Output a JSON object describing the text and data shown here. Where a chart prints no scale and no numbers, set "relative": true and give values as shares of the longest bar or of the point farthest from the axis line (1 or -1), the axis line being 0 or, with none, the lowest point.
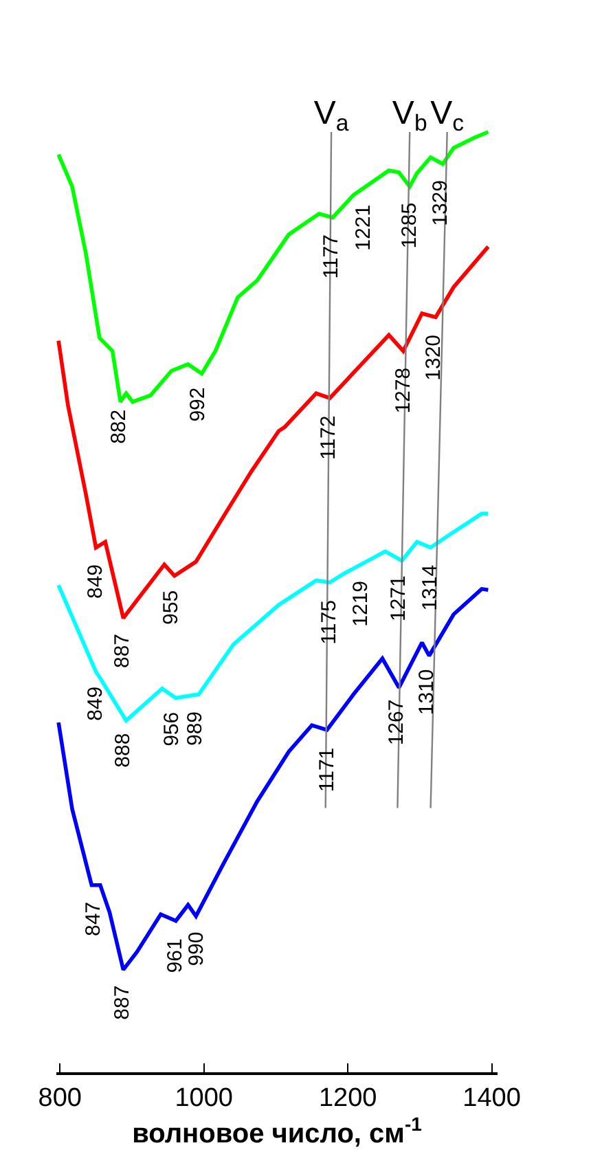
{
  "chart_data": {
    "type": "line",
    "relative": true,
    "xlabel": "волновое число, см$^{-1}$",
    "xlim": [
      795,
      1408
    ],
    "xticks": [
      800,
      1000,
      1200,
      1400
    ],
    "legend": false,
    "tick_labels": "x",
    "marker": "none",
    "line_style": "solid",
    "series": [
      {
        "color": "#00ff00",
        "x": [
          798,
          817,
          836,
          855,
          873,
          884,
          892,
          901,
          926,
          955,
          978,
          997,
          1016,
          1047,
          1074,
          1118,
          1160,
          1179,
          1208,
          1257,
          1271,
          1286,
          1296,
          1315,
          1332,
          1347,
          1376,
          1395
        ],
        "values": [
          0.976,
          0.942,
          0.871,
          0.781,
          0.767,
          0.713,
          0.722,
          0.713,
          0.72,
          0.746,
          0.753,
          0.743,
          0.767,
          0.824,
          0.842,
          0.891,
          0.913,
          0.909,
          0.933,
          0.959,
          0.957,
          0.942,
          0.956,
          0.973,
          0.966,
          0.983,
          0.994,
          1.0
        ]
      },
      {
        "color": "#ff0000",
        "x": [
          798,
          811,
          836,
          850,
          863,
          888,
          945,
          959,
          989,
          1028,
          1066,
          1104,
          1112,
          1156,
          1175,
          1219,
          1257,
          1277,
          1303,
          1322,
          1347,
          1395
        ],
        "values": [
          0.778,
          0.71,
          0.615,
          0.558,
          0.564,
          0.483,
          0.54,
          0.528,
          0.543,
          0.592,
          0.639,
          0.682,
          0.686,
          0.722,
          0.717,
          0.753,
          0.784,
          0.767,
          0.807,
          0.803,
          0.835,
          0.878
        ]
      },
      {
        "color": "#00ffff",
        "x": [
          798,
          850,
          856,
          892,
          942,
          961,
          993,
          1041,
          1104,
          1156,
          1175,
          1194,
          1252,
          1275,
          1296,
          1315,
          1342,
          1386,
          1395
        ],
        "values": [
          0.518,
          0.426,
          0.419,
          0.374,
          0.408,
          0.398,
          0.402,
          0.455,
          0.497,
          0.523,
          0.521,
          0.53,
          0.554,
          0.544,
          0.564,
          0.558,
          0.572,
          0.594,
          0.594
        ]
      },
      {
        "color": "#0000ff",
        "x": [
          798,
          817,
          844,
          856,
          869,
          888,
          907,
          940,
          961,
          978,
          989,
          1028,
          1074,
          1118,
          1150,
          1171,
          1208,
          1248,
          1271,
          1303,
          1313,
          1347,
          1386,
          1395
        ],
        "values": [
          0.372,
          0.28,
          0.199,
          0.199,
          0.17,
          0.109,
          0.128,
          0.168,
          0.161,
          0.178,
          0.166,
          0.223,
          0.288,
          0.341,
          0.369,
          0.364,
          0.402,
          0.44,
          0.409,
          0.457,
          0.443,
          0.487,
          0.514,
          0.513
        ]
      },
      {
        "name": "V$_{a}$",
        "color": "#808080",
        "x": [
          1169,
          1177
        ],
        "values": [
          0.281,
          1.0
        ]
      },
      {
        "name": "V$_{b}$",
        "color": "#808080",
        "x": [
          1269,
          1286
        ],
        "values": [
          0.281,
          1.0
        ]
      },
      {
        "name": "V$_{c}$",
        "color": "#808080",
        "x": [
          1315,
          1338
        ],
        "values": [
          0.281,
          1.0
        ]
      }
    ],
    "annotations": [
      {
        "text": "882",
        "x": 882,
        "y": 0.723
      },
      {
        "text": "992",
        "x": 992,
        "y": 0.746
      },
      {
        "text": "1177",
        "x": 1177,
        "y": 0.91
      },
      {
        "text": "1221",
        "x": 1221,
        "y": 0.94
      },
      {
        "text": "1285",
        "x": 1285,
        "y": 0.943
      },
      {
        "text": "1329",
        "x": 1329,
        "y": 0.967
      },
      {
        "text": "849",
        "x": 849,
        "y": 0.558
      },
      {
        "text": "887",
        "x": 887,
        "y": 0.484
      },
      {
        "text": "955",
        "x": 955,
        "y": 0.531
      },
      {
        "text": "1172",
        "x": 1172,
        "y": 0.718
      },
      {
        "text": "1278",
        "x": 1278,
        "y": 0.768
      },
      {
        "text": "1320",
        "x": 1320,
        "y": 0.803
      },
      {
        "text": "849",
        "x": 849,
        "y": 0.428
      },
      {
        "text": "888",
        "x": 888,
        "y": 0.379
      },
      {
        "text": "956",
        "x": 956,
        "y": 0.401
      },
      {
        "text": "989",
        "x": 989,
        "y": 0.402
      },
      {
        "text": "1175",
        "x": 1175,
        "y": 0.521
      },
      {
        "text": "1219",
        "x": 1219,
        "y": 0.54
      },
      {
        "text": "1271",
        "x": 1271,
        "y": 0.546
      },
      {
        "text": "1314",
        "x": 1314,
        "y": 0.558
      },
      {
        "text": "847",
        "x": 847,
        "y": 0.199
      },
      {
        "text": "887",
        "x": 887,
        "y": 0.11
      },
      {
        "text": "961",
        "x": 961,
        "y": 0.161
      },
      {
        "text": "990",
        "x": 990,
        "y": 0.167
      },
      {
        "text": "1171",
        "x": 1171,
        "y": 0.364
      },
      {
        "text": "1267",
        "x": 1267,
        "y": 0.414
      },
      {
        "text": "1310",
        "x": 1310,
        "y": 0.447
      }
    ]
  }
}
